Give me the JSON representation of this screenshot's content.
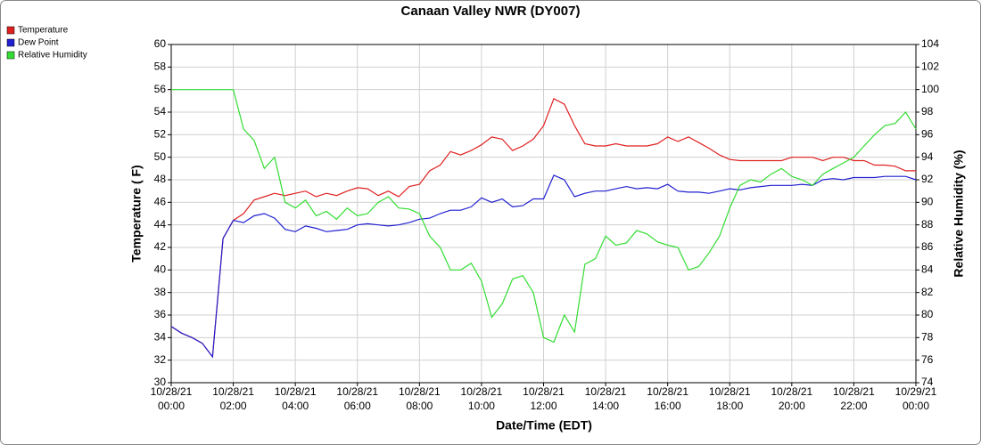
{
  "chart_data": {
    "type": "line",
    "title": "Canaan Valley NWR (DY007)",
    "x_label": "Date/Time (EDT)",
    "y_label": "Temperature ( F)",
    "y2_label": "Relative Humidity (%)",
    "grid": true,
    "legend": "top-left",
    "xlim": [
      0,
      24
    ],
    "xticks": [
      {
        "value": 0,
        "label": "10/28/21 00:00"
      },
      {
        "value": 2,
        "label": "10/28/21 02:00"
      },
      {
        "value": 4,
        "label": "10/28/21 04:00"
      },
      {
        "value": 6,
        "label": "10/28/21 06:00"
      },
      {
        "value": 8,
        "label": "10/28/21 08:00"
      },
      {
        "value": 10,
        "label": "10/28/21 10:00"
      },
      {
        "value": 12,
        "label": "10/28/21 12:00"
      },
      {
        "value": 14,
        "label": "10/28/21 14:00"
      },
      {
        "value": 16,
        "label": "10/28/21 16:00"
      },
      {
        "value": 18,
        "label": "10/28/21 18:00"
      },
      {
        "value": 20,
        "label": "10/28/21 20:00"
      },
      {
        "value": 22,
        "label": "10/28/21 22:00"
      },
      {
        "value": 24,
        "label": "10/29/21 00:00"
      }
    ],
    "ylim": [
      30,
      60
    ],
    "yticks": [
      30,
      32,
      34,
      36,
      38,
      40,
      42,
      44,
      46,
      48,
      50,
      52,
      54,
      56,
      58,
      60
    ],
    "y2lim": [
      74,
      104
    ],
    "y2ticks": [
      74,
      76,
      78,
      80,
      82,
      84,
      86,
      88,
      90,
      92,
      94,
      96,
      98,
      100,
      102,
      104
    ],
    "x": [
      0,
      0.33,
      0.67,
      1,
      1.33,
      1.67,
      2,
      2.33,
      2.67,
      3,
      3.33,
      3.67,
      4,
      4.33,
      4.67,
      5,
      5.33,
      5.67,
      6,
      6.33,
      6.67,
      7,
      7.33,
      7.67,
      8,
      8.33,
      8.67,
      9,
      9.33,
      9.67,
      10,
      10.33,
      10.67,
      11,
      11.33,
      11.67,
      12,
      12.33,
      12.67,
      13,
      13.33,
      13.67,
      14,
      14.33,
      14.67,
      15,
      15.33,
      15.67,
      16,
      16.33,
      16.67,
      17,
      17.33,
      17.67,
      18,
      18.33,
      18.67,
      19,
      19.33,
      19.67,
      20,
      20.33,
      20.67,
      21,
      21.33,
      21.67,
      22,
      22.33,
      22.67,
      23,
      23.33,
      23.67,
      24
    ],
    "series": [
      {
        "name": "Temperature",
        "color": "#e02020",
        "values": [
          35,
          34.4,
          34.0,
          33.5,
          32.3,
          42.8,
          44.4,
          45.0,
          46.2,
          46.5,
          46.8,
          46.6,
          46.8,
          47.0,
          46.5,
          46.8,
          46.6,
          47.0,
          47.3,
          47.2,
          46.6,
          47.0,
          46.5,
          47.4,
          47.6,
          48.8,
          49.3,
          50.5,
          50.2,
          50.6,
          51.1,
          51.8,
          51.6,
          50.6,
          51.0,
          51.6,
          52.8,
          55.2,
          54.7,
          52.8,
          51.2,
          51.0,
          51.0,
          51.2,
          51.0,
          51.0,
          51.0,
          51.2,
          51.8,
          51.4,
          51.8,
          51.3,
          50.8,
          50.2,
          49.8,
          49.7,
          49.7,
          49.7,
          49.7,
          49.7,
          50.0,
          50.0,
          50.0,
          49.7,
          50.0,
          50.0,
          49.7,
          49.7,
          49.3,
          49.3,
          49.2,
          48.8,
          48.8
        ]
      },
      {
        "name": "Dew Point",
        "color": "#2020d0",
        "values": [
          35,
          34.4,
          34.0,
          33.5,
          32.3,
          42.8,
          44.4,
          44.2,
          44.8,
          45.0,
          44.6,
          43.6,
          43.4,
          43.9,
          43.7,
          43.4,
          43.5,
          43.6,
          44.0,
          44.1,
          44.0,
          43.9,
          44.0,
          44.2,
          44.5,
          44.6,
          45.0,
          45.3,
          45.3,
          45.6,
          46.4,
          46.0,
          46.3,
          45.6,
          45.7,
          46.3,
          46.3,
          48.4,
          48.0,
          46.5,
          46.8,
          47.0,
          47.0,
          47.2,
          47.4,
          47.2,
          47.3,
          47.2,
          47.6,
          47.0,
          46.9,
          46.9,
          46.8,
          47.0,
          47.2,
          47.1,
          47.3,
          47.4,
          47.5,
          47.5,
          47.5,
          47.6,
          47.5,
          48.0,
          48.1,
          48.0,
          48.2,
          48.2,
          48.2,
          48.3,
          48.3,
          48.3,
          48.0
        ]
      },
      {
        "name": "Relative Humidity",
        "color": "#33dd33",
        "axis": "y2",
        "values": [
          100,
          100,
          100,
          100,
          100,
          100,
          100,
          96.5,
          95.5,
          93.0,
          94.0,
          90.0,
          89.5,
          90.2,
          88.8,
          89.2,
          88.5,
          89.5,
          88.8,
          89.0,
          90.0,
          90.5,
          89.5,
          89.4,
          89.0,
          87.0,
          86.0,
          84.0,
          84.0,
          84.6,
          83.0,
          79.8,
          81.0,
          83.2,
          83.5,
          82.0,
          78.0,
          77.6,
          80.0,
          78.5,
          84.5,
          85.0,
          87.0,
          86.2,
          86.4,
          87.5,
          87.2,
          86.5,
          86.2,
          86.0,
          84.0,
          84.3,
          85.5,
          87.0,
          89.5,
          91.5,
          92.0,
          91.8,
          92.5,
          93.0,
          92.3,
          92.0,
          91.5,
          92.5,
          93.0,
          93.5,
          94.0,
          95.0,
          96.0,
          96.8,
          97.0,
          98.0,
          96.5
        ]
      }
    ]
  }
}
